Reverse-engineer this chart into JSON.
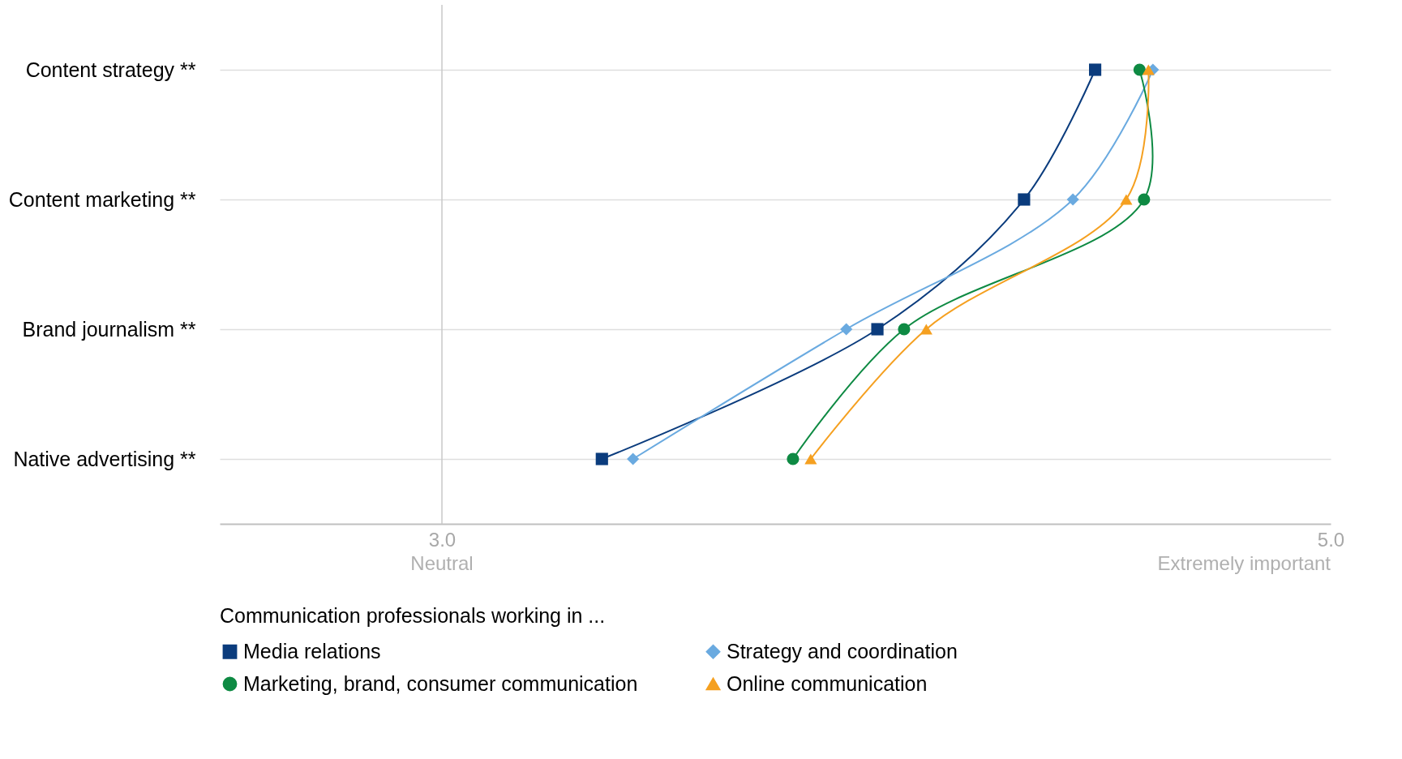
{
  "chart_data": {
    "type": "line",
    "orientation": "horizontal",
    "categories": [
      "Content strategy **",
      "Content marketing **",
      "Brand journalism **",
      "Native advertising **"
    ],
    "xlim": [
      2.5,
      5.0
    ],
    "xticks": [
      {
        "value": 3,
        "label": "3.0"
      },
      {
        "value": 5,
        "label": "5.0"
      }
    ],
    "legend_title": "Communication professionals working in ...",
    "legend": "bottom",
    "grid": "y",
    "ref_lines": [
      {
        "axis": "x",
        "value": 3,
        "label": null,
        "color": "#c8c8c8"
      }
    ],
    "annotations": [
      "Neutral",
      "Extremely important"
    ],
    "series": [
      {
        "name": "Media relations",
        "color": "#0b3c7d",
        "marker": "square",
        "values": [
          4.47,
          4.31,
          3.98,
          3.36
        ]
      },
      {
        "name": "Strategy and coordination",
        "color": "#6aaae0",
        "marker": "diamond",
        "values": [
          4.6,
          4.42,
          3.91,
          3.43
        ]
      },
      {
        "name": "Marketing, brand, consumer communication",
        "color": "#0e8a43",
        "marker": "circle",
        "values": [
          4.57,
          4.58,
          4.04,
          3.79
        ]
      },
      {
        "name": "Online communication",
        "color": "#f5a020",
        "marker": "triangle",
        "values": [
          4.59,
          4.54,
          4.09,
          3.83
        ]
      }
    ]
  }
}
